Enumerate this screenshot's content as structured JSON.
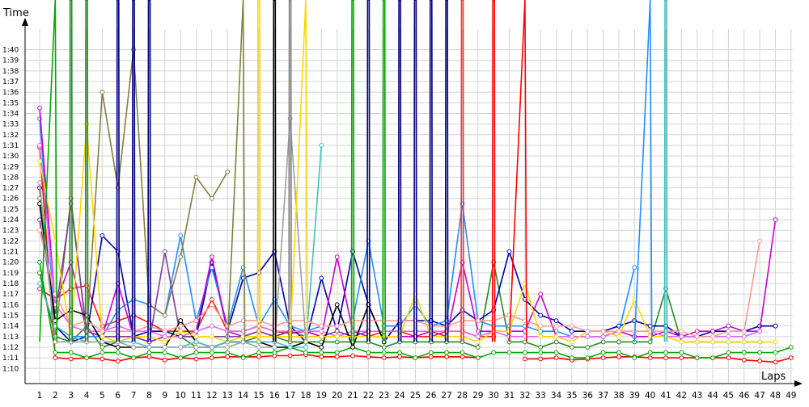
{
  "chart_data": {
    "type": "line",
    "xlabel": "Laps",
    "ylabel": "Time",
    "grid": true,
    "x": [
      1,
      2,
      3,
      4,
      5,
      6,
      7,
      8,
      9,
      10,
      11,
      12,
      13,
      14,
      15,
      16,
      17,
      18,
      19,
      20,
      21,
      22,
      23,
      24,
      25,
      26,
      27,
      28,
      29,
      30,
      31,
      32,
      33,
      34,
      35,
      36,
      37,
      38,
      39,
      40,
      41,
      42,
      43,
      44,
      45,
      46,
      47,
      48,
      49
    ],
    "xlim": [
      1,
      49
    ],
    "ylim": [
      9.0,
      41.5
    ],
    "y_ticks": [
      {
        "v": 10,
        "label": "1:10"
      },
      {
        "v": 11,
        "label": "1:11"
      },
      {
        "v": 12,
        "label": "1:12"
      },
      {
        "v": 13,
        "label": "1:13"
      },
      {
        "v": 14,
        "label": "1:14"
      },
      {
        "v": 15,
        "label": "1:15"
      },
      {
        "v": 16,
        "label": "1:16"
      },
      {
        "v": 17,
        "label": "1:17"
      },
      {
        "v": 18,
        "label": "1:18"
      },
      {
        "v": 19,
        "label": "1:19"
      },
      {
        "v": 20,
        "label": "1:20"
      },
      {
        "v": 21,
        "label": "1:21"
      },
      {
        "v": 22,
        "label": "1:22"
      },
      {
        "v": 23,
        "label": "1:23"
      },
      {
        "v": 24,
        "label": "1:24"
      },
      {
        "v": 25,
        "label": "1:25"
      },
      {
        "v": 26,
        "label": "1:26"
      },
      {
        "v": 27,
        "label": "1:27"
      },
      {
        "v": 28,
        "label": "1:28"
      },
      {
        "v": 29,
        "label": "1:29"
      },
      {
        "v": 30,
        "label": "1:30"
      },
      {
        "v": 31,
        "label": "1:31"
      },
      {
        "v": 32,
        "label": "1:32"
      },
      {
        "v": 33,
        "label": "1:33"
      },
      {
        "v": 34,
        "label": "1:34"
      },
      {
        "v": 35,
        "label": "1:35"
      },
      {
        "v": 36,
        "label": "1:36"
      },
      {
        "v": 37,
        "label": "1:37"
      },
      {
        "v": 38,
        "label": "1:38"
      },
      {
        "v": 39,
        "label": "1:39"
      },
      {
        "v": 40,
        "label": "1:40"
      }
    ],
    "series": [
      {
        "color": "#ff0000",
        "values": [
          30.8,
          11.0,
          10.9,
          11.0,
          10.9,
          10.7,
          11.0,
          11.1,
          10.8,
          11.0,
          10.9,
          11.0,
          11.1,
          11.1,
          11.1,
          11.2,
          11.2,
          11.3,
          11.1,
          11.1,
          11.2,
          11.1,
          11.0,
          11.1,
          11.0,
          11.1,
          11.1,
          11.1,
          11.0,
          null,
          null,
          10.9,
          10.9,
          11.0,
          10.8,
          10.9,
          11.0,
          11.1,
          11.1,
          11.0,
          11.0,
          11.0,
          11.0,
          11.0,
          11.0,
          10.8,
          10.7,
          10.6,
          11.0
        ]
      },
      {
        "color": "#ff1a1a",
        "values": [
          17.5,
          16.5,
          17.5,
          17.8,
          14.0,
          14.5,
          15.0,
          14.3,
          13.5,
          13.5,
          13.5,
          16.5,
          13.5,
          13.5,
          14.0,
          13.5,
          13.3,
          13.5,
          13.0,
          13.0,
          13.5,
          13.0,
          13.5,
          13.5,
          13.0,
          13.0,
          13.5,
          13.5,
          13.0,
          13.0,
          null,
          null,
          null,
          null,
          null,
          null,
          null,
          null,
          null,
          null,
          null,
          null,
          null,
          null,
          null,
          null,
          null,
          null,
          null
        ]
      },
      {
        "color": "#00aa00",
        "values": [
          20.0,
          11.5,
          11.5,
          11.0,
          11.5,
          11.5,
          11.0,
          11.5,
          11.5,
          11.0,
          11.5,
          11.5,
          11.5,
          11.0,
          11.5,
          11.5,
          12.0,
          11.5,
          11.5,
          11.5,
          12.0,
          11.5,
          11.5,
          11.5,
          11.0,
          11.5,
          11.5,
          11.5,
          11.0,
          11.5,
          11.5,
          11.5,
          11.5,
          11.5,
          11.0,
          11.0,
          11.5,
          11.5,
          11.0,
          11.5,
          11.5,
          11.5,
          11.0,
          11.0,
          11.5,
          11.5,
          11.5,
          11.5,
          12.0
        ]
      },
      {
        "color": "#228b22",
        "values": [
          19.0,
          13.0,
          12.5,
          14.0,
          12.0,
          12.5,
          13.0,
          12.5,
          13.0,
          13.0,
          12.0,
          12.0,
          12.5,
          12.5,
          13.0,
          13.0,
          12.5,
          12.5,
          12.5,
          12.5,
          12.5,
          12.5,
          12.0,
          12.5,
          12.5,
          12.5,
          12.5,
          12.5,
          12.0,
          20.0,
          12.5,
          12.5,
          12.0,
          12.5,
          12.0,
          12.0,
          12.5,
          12.5,
          12.5,
          12.5,
          17.5,
          12.5,
          12.5,
          12.5,
          12.5,
          12.5,
          12.5,
          null,
          null
        ]
      },
      {
        "color": "#0000aa",
        "values": [
          27.0,
          14.0,
          12.5,
          13.0,
          22.5,
          21.0,
          13.0,
          13.5,
          13.5,
          13.0,
          13.0,
          20.0,
          13.5,
          18.5,
          19.0,
          21.0,
          14.0,
          12.5,
          18.5,
          13.5,
          21.0,
          16.0,
          12.5,
          14.5,
          14.5,
          14.5,
          14.0,
          15.5,
          14.5,
          15.5,
          21.0,
          16.5,
          15.0,
          14.5,
          13.5,
          13.5,
          13.5,
          14.0,
          14.5,
          14.0,
          14.0,
          13.0,
          13.0,
          13.5,
          13.5,
          13.5,
          14.0,
          14.0,
          null
        ]
      },
      {
        "color": "#1e90ff",
        "values": [
          33.5,
          14.0,
          13.0,
          13.0,
          13.0,
          15.5,
          16.5,
          16.0,
          15.0,
          22.5,
          14.5,
          19.5,
          14.0,
          19.5,
          14.0,
          16.5,
          14.0,
          13.5,
          14.0,
          14.0,
          14.5,
          22.0,
          14.0,
          14.0,
          16.0,
          14.0,
          14.5,
          25.5,
          14.5,
          14.0,
          14.0,
          14.0,
          13.5,
          13.5,
          13.0,
          13.0,
          13.0,
          13.5,
          19.5,
          null,
          null,
          null,
          null,
          null,
          null,
          null,
          null,
          null,
          null
        ]
      },
      {
        "color": "#cc00cc",
        "values": [
          34.5,
          16.0,
          20.0,
          13.5,
          13.0,
          18.0,
          13.0,
          12.5,
          13.0,
          13.0,
          13.5,
          20.5,
          13.5,
          13.0,
          13.5,
          13.0,
          13.5,
          13.5,
          13.0,
          20.5,
          13.5,
          13.0,
          13.0,
          13.0,
          13.0,
          13.5,
          13.0,
          20.0,
          13.5,
          13.5,
          13.5,
          13.5,
          17.0,
          13.0,
          13.0,
          13.0,
          13.0,
          13.5,
          13.0,
          13.0,
          13.5,
          13.0,
          13.5,
          13.5,
          14.0,
          13.5,
          13.5,
          24.0,
          null
        ]
      },
      {
        "color": "#e066ff",
        "values": [
          31.0,
          16.0,
          14.0,
          13.5,
          13.5,
          14.0,
          13.5,
          13.5,
          13.0,
          13.0,
          13.5,
          14.0,
          13.5,
          13.5,
          14.0,
          13.5,
          13.5,
          13.5,
          13.5,
          13.0,
          13.5,
          13.5,
          13.5,
          13.5,
          13.5,
          13.5,
          13.5,
          13.5,
          13.0,
          13.5,
          13.0,
          13.0,
          13.0,
          13.0,
          13.0,
          13.0,
          13.0,
          13.5,
          13.5,
          13.5,
          13.0,
          13.0,
          13.0,
          13.0,
          13.0,
          13.0,
          13.5,
          null,
          null
        ]
      },
      {
        "color": "#808040",
        "values": [
          26.0,
          13.0,
          26.0,
          13.0,
          36.0,
          27.0,
          40.0,
          16.0,
          15.0,
          20.5,
          28.0,
          26.0,
          28.5,
          null,
          null,
          null,
          null,
          null,
          null,
          null,
          null,
          null,
          null,
          null,
          null,
          null,
          null,
          null,
          null,
          null,
          null,
          null,
          null,
          null,
          null,
          null,
          null,
          null,
          null,
          null,
          null,
          null,
          null,
          null,
          null,
          null,
          null,
          null,
          null
        ]
      },
      {
        "color": "#7a3fa0",
        "values": [
          24.0,
          15.0,
          25.5,
          13.5,
          13.0,
          13.0,
          13.0,
          12.5,
          21.0,
          13.0,
          13.0,
          13.0,
          13.0,
          13.0,
          13.5,
          13.0,
          13.5,
          13.0,
          13.0,
          13.5,
          13.0,
          13.5,
          null,
          null,
          null,
          null,
          null,
          null,
          null,
          null,
          null,
          null,
          null,
          null,
          null,
          null,
          null,
          null,
          null,
          null,
          null,
          null,
          null,
          null,
          null,
          null,
          null,
          null,
          null
        ]
      },
      {
        "color": "#000000",
        "values": [
          25.5,
          14.5,
          15.5,
          15.0,
          12.5,
          12.0,
          12.0,
          12.0,
          12.0,
          14.5,
          12.5,
          12.0,
          12.5,
          12.5,
          12.5,
          12.0,
          12.0,
          12.5,
          12.0,
          16.0,
          12.0,
          16.0,
          12.5,
          null,
          null,
          null,
          null,
          null,
          null,
          null,
          null,
          null,
          null,
          null,
          null,
          null,
          null,
          null,
          null,
          null,
          null,
          null,
          null,
          null,
          null,
          null,
          null,
          null,
          null
        ]
      },
      {
        "color": "#ffd700",
        "values": [
          29.5,
          22.0,
          13.0,
          33.0,
          13.0,
          12.5,
          13.0,
          13.0,
          12.5,
          13.5,
          13.0,
          13.0,
          12.5,
          13.0,
          13.0,
          13.0,
          13.0,
          13.0,
          13.0,
          13.0,
          13.0,
          13.0,
          13.0,
          13.0,
          17.0,
          13.0,
          13.0,
          13.0,
          12.5,
          13.5,
          13.5,
          18.0,
          13.0,
          13.0,
          12.5,
          13.5,
          13.5,
          13.0,
          16.5,
          13.0,
          13.0,
          12.5,
          12.5,
          12.5,
          12.5,
          12.5,
          12.5,
          12.5,
          null
        ]
      },
      {
        "color": "#ff9999",
        "values": [
          23.0,
          17.0,
          14.0,
          14.5,
          13.5,
          13.5,
          13.5,
          14.0,
          13.5,
          14.0,
          14.5,
          16.0,
          14.0,
          14.5,
          14.5,
          14.0,
          14.5,
          14.5,
          14.0,
          14.0,
          14.5,
          14.5,
          14.5,
          14.5,
          14.5,
          14.0,
          14.0,
          14.5,
          14.5,
          14.5,
          15.0,
          14.5,
          14.0,
          14.0,
          14.0,
          13.5,
          13.5,
          13.5,
          13.5,
          13.5,
          13.5,
          13.5,
          13.0,
          13.0,
          13.5,
          13.5,
          22.0,
          null,
          null
        ]
      },
      {
        "color": "#40c0c0",
        "values": [
          18.0,
          14.0,
          13.0,
          12.5,
          12.5,
          12.5,
          12.5,
          12.0,
          12.0,
          12.0,
          12.5,
          12.0,
          12.5,
          12.5,
          12.5,
          12.5,
          12.0,
          12.0,
          31.0,
          null,
          null,
          null,
          null,
          null,
          null,
          null,
          null,
          null,
          null,
          null,
          null,
          null,
          null,
          null,
          null,
          null,
          null,
          null,
          null,
          null,
          null,
          null,
          null,
          null,
          null,
          null,
          null,
          null,
          null
        ]
      },
      {
        "color": "#a0a0a0",
        "values": [
          27.5,
          12.5,
          12.5,
          12.5,
          12.5,
          12.5,
          12.0,
          12.0,
          12.0,
          12.0,
          12.0,
          12.0,
          12.0,
          12.5,
          12.0,
          12.0,
          33.5,
          12.5,
          null,
          null,
          null,
          null,
          null,
          null,
          null,
          null,
          null,
          null,
          null,
          null,
          null,
          null,
          null,
          null,
          null,
          null,
          null,
          null,
          null,
          null,
          null,
          null,
          null,
          null,
          null,
          null,
          null,
          null,
          null
        ]
      }
    ],
    "spikes": [
      {
        "color": "#00aa00",
        "x": [
          1,
          2,
          2
        ]
      },
      {
        "color": "#228b22",
        "x": [
          3,
          3
        ]
      },
      {
        "color": "#228b22",
        "x": [
          4,
          4
        ]
      },
      {
        "color": "#000080",
        "x": [
          6,
          6
        ]
      },
      {
        "color": "#000080",
        "x": [
          7,
          7
        ]
      },
      {
        "color": "#000080",
        "x": [
          8,
          8
        ]
      },
      {
        "color": "#808040",
        "x": [
          13,
          14
        ]
      },
      {
        "color": "#ffd700",
        "x": [
          15,
          15
        ]
      },
      {
        "color": "#000000",
        "x": [
          16,
          16
        ]
      },
      {
        "color": "#808080",
        "x": [
          17,
          17
        ]
      },
      {
        "color": "#ffd700",
        "x": [
          17,
          18
        ]
      },
      {
        "color": "#00aa00",
        "x": [
          21,
          21
        ]
      },
      {
        "color": "#000080",
        "x": [
          22,
          22
        ]
      },
      {
        "color": "#00aa00",
        "x": [
          23,
          23
        ]
      },
      {
        "color": "#000080",
        "x": [
          24,
          24
        ]
      },
      {
        "color": "#000080",
        "x": [
          25,
          25
        ]
      },
      {
        "color": "#000080",
        "x": [
          26,
          26
        ]
      },
      {
        "color": "#000080",
        "x": [
          27,
          27
        ]
      },
      {
        "color": "#ff3333",
        "x": [
          28,
          28
        ]
      },
      {
        "color": "#ff0000",
        "x": [
          30,
          30
        ]
      },
      {
        "color": "#ff0000",
        "x": [
          31,
          32
        ]
      },
      {
        "color": "#1e90ff",
        "x": [
          39,
          40
        ]
      },
      {
        "color": "#40c0c0",
        "x": [
          41,
          41
        ]
      }
    ]
  }
}
